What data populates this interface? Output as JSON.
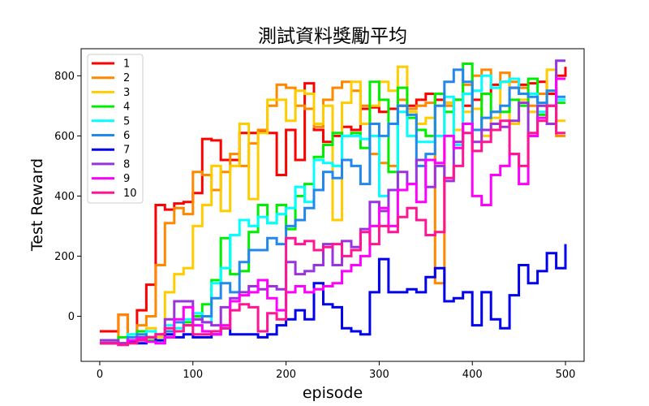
{
  "chart_data": {
    "type": "line",
    "title": "測試資料獎勵平均",
    "xlabel": "episode",
    "ylabel": "Test Reward",
    "xlim": [
      -20,
      520
    ],
    "ylim": [
      -150,
      890
    ],
    "xticks": [
      0,
      100,
      200,
      300,
      400,
      500
    ],
    "yticks": [
      0,
      200,
      400,
      600,
      800
    ],
    "grid": false,
    "legend_position": "top-left",
    "series": [
      {
        "name": "1",
        "color": "#ff0000",
        "x": [
          0,
          10,
          20,
          30,
          40,
          50,
          60,
          70,
          80,
          90,
          100,
          110,
          120,
          130,
          140,
          150,
          160,
          170,
          180,
          190,
          200,
          210,
          220,
          230,
          240,
          250,
          260,
          270,
          280,
          290,
          300,
          310,
          320,
          330,
          340,
          350,
          360,
          370,
          380,
          390,
          400,
          410,
          420,
          430,
          440,
          450,
          460,
          470,
          480,
          490,
          500
        ],
        "y": [
          -50,
          -50,
          5,
          -80,
          20,
          105,
          370,
          355,
          375,
          380,
          410,
          590,
          585,
          520,
          520,
          610,
          610,
          615,
          610,
          470,
          620,
          520,
          775,
          620,
          580,
          600,
          630,
          620,
          690,
          695,
          680,
          690,
          700,
          700,
          720,
          740,
          720,
          710,
          720,
          700,
          720,
          740,
          770,
          780,
          760,
          770,
          775,
          780,
          740,
          800,
          830
        ]
      },
      {
        "name": "2",
        "color": "#ff8800",
        "x": [
          0,
          10,
          20,
          30,
          40,
          50,
          60,
          70,
          80,
          90,
          100,
          110,
          120,
          130,
          140,
          150,
          160,
          170,
          180,
          190,
          200,
          210,
          220,
          230,
          240,
          250,
          260,
          270,
          280,
          290,
          300,
          310,
          320,
          330,
          340,
          350,
          360,
          370,
          380,
          390,
          400,
          410,
          420,
          430,
          440,
          450,
          460,
          470,
          480,
          490,
          500
        ],
        "y": [
          -90,
          -90,
          5,
          -90,
          -30,
          0,
          170,
          310,
          360,
          340,
          480,
          470,
          420,
          480,
          540,
          500,
          575,
          620,
          700,
          770,
          760,
          700,
          690,
          630,
          720,
          760,
          780,
          750,
          700,
          540,
          510,
          500,
          720,
          690,
          700,
          710,
          110,
          700,
          720,
          770,
          800,
          820,
          760,
          810,
          780,
          760,
          700,
          740,
          700,
          600,
          600
        ]
      },
      {
        "name": "3",
        "color": "#ffcc00",
        "x": [
          0,
          10,
          20,
          30,
          40,
          50,
          60,
          70,
          80,
          90,
          100,
          110,
          120,
          130,
          140,
          150,
          160,
          170,
          180,
          190,
          200,
          210,
          220,
          230,
          240,
          250,
          260,
          270,
          280,
          290,
          300,
          310,
          320,
          330,
          340,
          350,
          360,
          370,
          380,
          390,
          400,
          410,
          420,
          430,
          440,
          450,
          460,
          470,
          480,
          490,
          500
        ],
        "y": [
          -80,
          -80,
          -90,
          -60,
          -80,
          -40,
          -70,
          80,
          140,
          160,
          300,
          370,
          500,
          350,
          500,
          640,
          390,
          610,
          720,
          720,
          650,
          750,
          740,
          640,
          700,
          320,
          710,
          780,
          640,
          700,
          780,
          750,
          830,
          680,
          640,
          660,
          700,
          710,
          620,
          680,
          690,
          600,
          660,
          780,
          640,
          720,
          680,
          700,
          820,
          650,
          650
        ]
      },
      {
        "name": "4",
        "color": "#00ee00",
        "x": [
          0,
          10,
          20,
          30,
          40,
          50,
          60,
          70,
          80,
          90,
          100,
          110,
          120,
          130,
          140,
          150,
          160,
          170,
          180,
          190,
          200,
          210,
          220,
          230,
          240,
          250,
          260,
          270,
          280,
          290,
          300,
          310,
          320,
          330,
          340,
          350,
          360,
          370,
          380,
          390,
          400,
          410,
          420,
          430,
          440,
          450,
          460,
          470,
          480,
          490,
          500
        ],
        "y": [
          -90,
          -90,
          -70,
          -80,
          -50,
          -80,
          -90,
          -70,
          -50,
          -20,
          0,
          40,
          120,
          260,
          140,
          150,
          280,
          370,
          310,
          370,
          290,
          400,
          440,
          530,
          570,
          610,
          600,
          610,
          560,
          780,
          720,
          480,
          760,
          660,
          620,
          600,
          740,
          680,
          720,
          840,
          620,
          740,
          680,
          680,
          720,
          700,
          790,
          670,
          750,
          710,
          710
        ]
      },
      {
        "name": "5",
        "color": "#00ffff",
        "x": [
          0,
          10,
          20,
          30,
          40,
          50,
          60,
          70,
          80,
          90,
          100,
          110,
          120,
          130,
          140,
          150,
          160,
          170,
          180,
          190,
          200,
          210,
          220,
          230,
          240,
          250,
          260,
          270,
          280,
          290,
          300,
          310,
          320,
          330,
          340,
          350,
          360,
          370,
          380,
          390,
          400,
          410,
          420,
          430,
          440,
          450,
          460,
          470,
          480,
          490,
          500
        ],
        "y": [
          -80,
          -80,
          -90,
          -60,
          -70,
          -50,
          -80,
          -30,
          -40,
          -10,
          10,
          -20,
          110,
          160,
          270,
          320,
          300,
          330,
          310,
          340,
          360,
          430,
          380,
          520,
          510,
          500,
          600,
          600,
          590,
          600,
          400,
          420,
          680,
          600,
          580,
          580,
          600,
          730,
          570,
          740,
          750,
          800,
          760,
          780,
          790,
          740,
          740,
          680,
          700,
          720,
          720
        ]
      },
      {
        "name": "6",
        "color": "#2288ee",
        "x": [
          0,
          10,
          20,
          30,
          40,
          50,
          60,
          70,
          80,
          90,
          100,
          110,
          120,
          130,
          140,
          150,
          160,
          170,
          180,
          190,
          200,
          210,
          220,
          230,
          240,
          250,
          260,
          270,
          280,
          290,
          300,
          310,
          320,
          330,
          340,
          350,
          360,
          370,
          380,
          390,
          400,
          410,
          420,
          430,
          440,
          450,
          460,
          470,
          480,
          490,
          500
        ],
        "y": [
          -80,
          -80,
          -90,
          -70,
          -60,
          -70,
          -80,
          -50,
          -20,
          -30,
          -10,
          0,
          60,
          110,
          80,
          180,
          220,
          220,
          260,
          240,
          300,
          320,
          360,
          420,
          480,
          460,
          520,
          500,
          440,
          640,
          600,
          640,
          700,
          670,
          500,
          540,
          700,
          780,
          820,
          780,
          620,
          660,
          680,
          700,
          760,
          740,
          730,
          710,
          750,
          730,
          730
        ]
      },
      {
        "name": "7",
        "color": "#0000ee",
        "x": [
          0,
          10,
          20,
          30,
          40,
          50,
          60,
          70,
          80,
          90,
          100,
          110,
          120,
          130,
          140,
          150,
          160,
          170,
          180,
          190,
          200,
          210,
          220,
          230,
          240,
          250,
          260,
          270,
          280,
          290,
          300,
          310,
          320,
          330,
          340,
          350,
          360,
          370,
          380,
          390,
          400,
          410,
          420,
          430,
          440,
          450,
          460,
          470,
          480,
          490,
          500
        ],
        "y": [
          -90,
          -90,
          -95,
          -85,
          -90,
          -70,
          -80,
          -60,
          -70,
          -60,
          -70,
          -70,
          -60,
          -40,
          -60,
          -60,
          -60,
          -70,
          -60,
          -30,
          -10,
          20,
          -10,
          110,
          40,
          30,
          -40,
          -50,
          -60,
          80,
          190,
          80,
          80,
          90,
          80,
          130,
          160,
          50,
          60,
          80,
          -30,
          80,
          -10,
          -40,
          70,
          170,
          110,
          150,
          210,
          160,
          240
        ]
      },
      {
        "name": "8",
        "color": "#9933dd",
        "x": [
          0,
          10,
          20,
          30,
          40,
          50,
          60,
          70,
          80,
          90,
          100,
          110,
          120,
          130,
          140,
          150,
          160,
          170,
          180,
          190,
          200,
          210,
          220,
          230,
          240,
          250,
          260,
          270,
          280,
          290,
          300,
          310,
          320,
          330,
          340,
          350,
          360,
          370,
          380,
          390,
          400,
          410,
          420,
          430,
          440,
          450,
          460,
          470,
          480,
          490,
          500
        ],
        "y": [
          -80,
          -80,
          -90,
          -80,
          -70,
          -70,
          -60,
          -10,
          50,
          50,
          -10,
          -20,
          -30,
          30,
          60,
          80,
          100,
          90,
          100,
          90,
          180,
          140,
          150,
          170,
          240,
          170,
          250,
          230,
          290,
          380,
          350,
          420,
          480,
          440,
          520,
          430,
          500,
          450,
          580,
          640,
          580,
          620,
          640,
          630,
          650,
          710,
          600,
          700,
          640,
          850,
          850
        ]
      },
      {
        "name": "9",
        "color": "#ff00ff",
        "x": [
          0,
          10,
          20,
          30,
          40,
          50,
          60,
          70,
          80,
          90,
          100,
          110,
          120,
          130,
          140,
          150,
          160,
          170,
          180,
          190,
          200,
          210,
          220,
          230,
          240,
          250,
          260,
          270,
          280,
          290,
          300,
          310,
          320,
          330,
          340,
          350,
          360,
          370,
          380,
          390,
          400,
          410,
          420,
          430,
          440,
          450,
          460,
          470,
          480,
          490,
          500
        ],
        "y": [
          -90,
          -90,
          -95,
          -80,
          -75,
          -85,
          -90,
          -70,
          -10,
          30,
          -30,
          -50,
          -60,
          -30,
          50,
          70,
          80,
          120,
          60,
          20,
          80,
          100,
          80,
          90,
          100,
          110,
          150,
          170,
          200,
          300,
          360,
          300,
          420,
          440,
          380,
          520,
          510,
          600,
          560,
          640,
          400,
          370,
          470,
          500,
          540,
          440,
          600,
          660,
          700,
          790,
          790
        ]
      },
      {
        "name": "10",
        "color": "#ff1493",
        "x": [
          0,
          10,
          20,
          30,
          40,
          50,
          60,
          70,
          80,
          90,
          100,
          110,
          120,
          130,
          140,
          150,
          160,
          170,
          180,
          190,
          200,
          210,
          220,
          230,
          240,
          250,
          260,
          270,
          280,
          290,
          300,
          310,
          320,
          330,
          340,
          350,
          360,
          370,
          380,
          390,
          400,
          410,
          420,
          430,
          440,
          450,
          460,
          470,
          480,
          490,
          500
        ],
        "y": [
          -90,
          -90,
          -95,
          -90,
          -80,
          -70,
          -60,
          -40,
          -50,
          -30,
          -60,
          -60,
          -50,
          -40,
          20,
          40,
          30,
          -50,
          10,
          -10,
          260,
          240,
          250,
          220,
          230,
          240,
          200,
          220,
          280,
          240,
          300,
          280,
          330,
          360,
          320,
          270,
          280,
          460,
          500,
          610,
          550,
          580,
          620,
          650,
          540,
          500,
          610,
          650,
          700,
          610,
          610
        ]
      }
    ]
  }
}
